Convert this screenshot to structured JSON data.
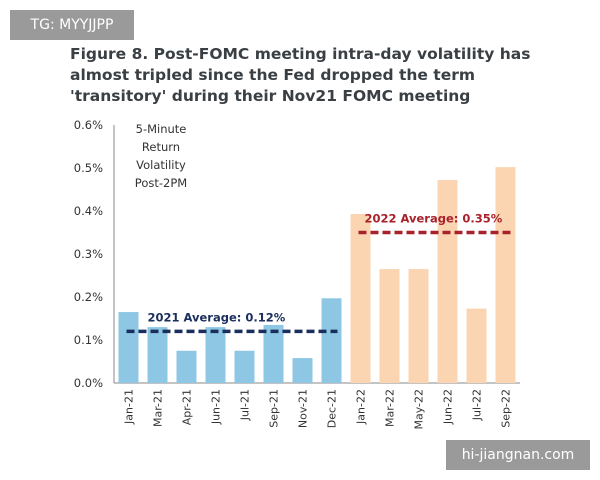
{
  "watermark_top": "TG: MYYJJPP",
  "watermark_bottom": "hi-jiangnan.com",
  "chart_data": {
    "type": "bar",
    "title": "Figure 8. Post-FOMC meeting intra-day volatility has almost tripled since the Fed dropped the term 'transitory' during their Nov21 FOMC meeting",
    "note_lines": [
      "5-Minute",
      "Return",
      "Volatility",
      "Post-2PM"
    ],
    "categories": [
      "Jan-21",
      "Mar-21",
      "Apr-21",
      "Jun-21",
      "Jul-21",
      "Sep-21",
      "Nov-21",
      "Dec-21",
      "Jan-22",
      "Mar-22",
      "May-22",
      "Jun-22",
      "Jul-22",
      "Sep-22"
    ],
    "values": [
      0.165,
      0.13,
      0.075,
      0.13,
      0.075,
      0.135,
      0.058,
      0.197,
      0.393,
      0.265,
      0.265,
      0.472,
      0.173,
      0.502
    ],
    "yticks": [
      "0.0%",
      "0.1%",
      "0.2%",
      "0.3%",
      "0.4%",
      "0.5%",
      "0.6%"
    ],
    "ylim": [
      0,
      0.6
    ],
    "colors": {
      "2021": "#8ec7e3",
      "2022": "#fbd4b2",
      "avg2021": "#1a2f5e",
      "avg2022": "#a8222c"
    },
    "averages": [
      {
        "label": "2021 Average: 0.12%",
        "value": 0.12,
        "from_index": 0,
        "to_index": 7,
        "color_key": "avg2021"
      },
      {
        "label": "2022 Average: 0.35%",
        "value": 0.35,
        "from_index": 8,
        "to_index": 13,
        "color_key": "avg2022"
      }
    ]
  }
}
